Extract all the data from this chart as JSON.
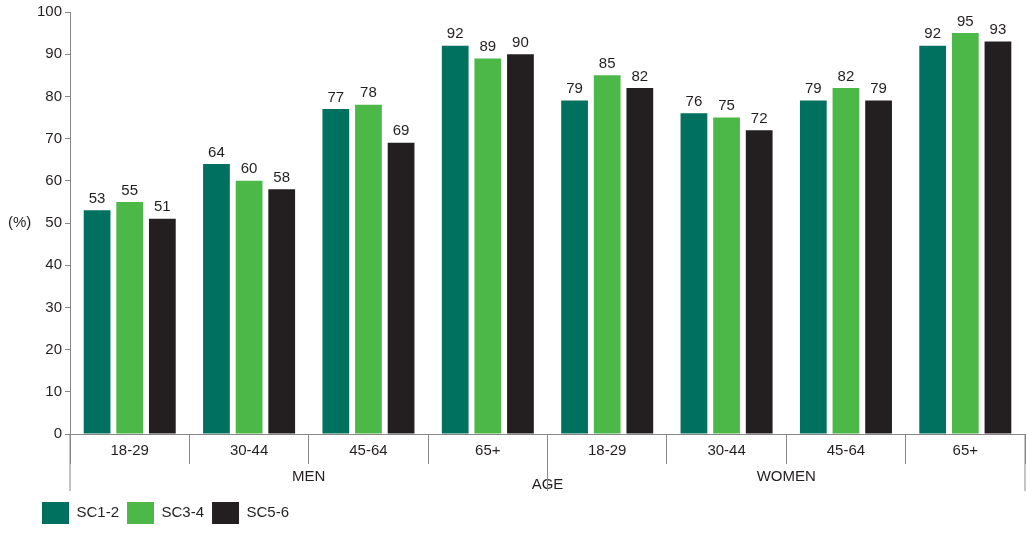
{
  "chart_data": {
    "type": "bar",
    "xlabel": "AGE",
    "ylabel": "(%)",
    "categories": [
      "18-29",
      "30-44",
      "45-64",
      "65+",
      "18-29",
      "30-44",
      "45-64",
      "65+"
    ],
    "annotations": [
      "MEN",
      "WOMEN"
    ],
    "series": [
      {
        "name": "SC1-2",
        "color": "#00715f",
        "values": [
          53,
          64,
          77,
          92,
          79,
          76,
          79,
          92
        ]
      },
      {
        "name": "SC3-4",
        "color": "#4cb848",
        "values": [
          55,
          60,
          78,
          89,
          85,
          75,
          82,
          95
        ]
      },
      {
        "name": "SC5-6",
        "color": "#231f20",
        "values": [
          51,
          58,
          69,
          90,
          82,
          72,
          79,
          93
        ]
      }
    ],
    "ylim": [
      0,
      100
    ],
    "yticks": [
      0,
      10,
      20,
      30,
      40,
      50,
      60,
      70,
      80,
      90,
      100
    ],
    "data_labels": true,
    "grid": false,
    "legend": "bottom left"
  }
}
